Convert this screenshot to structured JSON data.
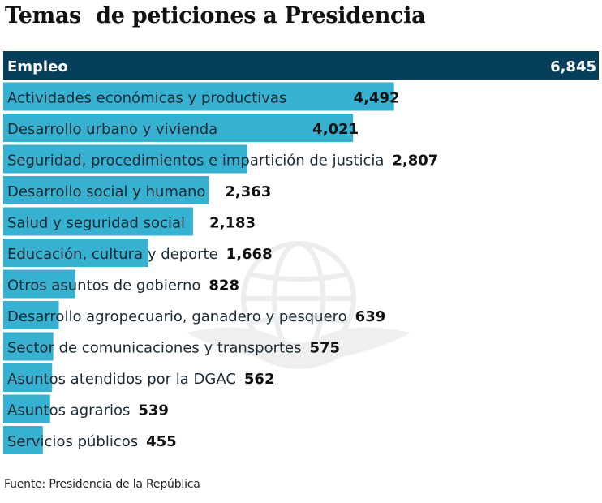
{
  "chart_data": {
    "type": "bar",
    "orientation": "horizontal",
    "title": "Temas  de peticiones a Presidencia",
    "categories": [
      "Empleo",
      "Actividades económicas y productivas",
      "Desarrollo urbano y vivienda",
      "Seguridad, procedimientos e impartición de justicia",
      "Desarrollo social y humano",
      "Salud y seguridad social",
      "Educación, cultura y deporte",
      "Otros asuntos de gobierno",
      "Desarrollo agropecuario, ganadero y pesquero",
      "Sector de comunicaciones y transportes",
      "Asuntos atendidos por la DGAC",
      "Asuntos agrarios",
      "Servicios públicos"
    ],
    "values": [
      6845,
      4492,
      4021,
      2807,
      2363,
      2183,
      1668,
      828,
      639,
      575,
      562,
      539,
      455
    ],
    "value_labels": [
      "6,845",
      "4,492",
      "4,021",
      "2,807",
      "2,363",
      "2,183",
      "1,668",
      "828",
      "639",
      "575",
      "562",
      "539",
      "455"
    ],
    "xlim": [
      0,
      6845
    ],
    "xlabel": "",
    "ylabel": "",
    "grid": false,
    "legend": "none",
    "source": "Fuente: Presidencia de la República",
    "colors": {
      "highlight_bar": "#063f5c",
      "bar": "#37b1d2",
      "text": "#1b2a33",
      "value_text": "#111111",
      "watermark": "#e9e9e9"
    }
  }
}
